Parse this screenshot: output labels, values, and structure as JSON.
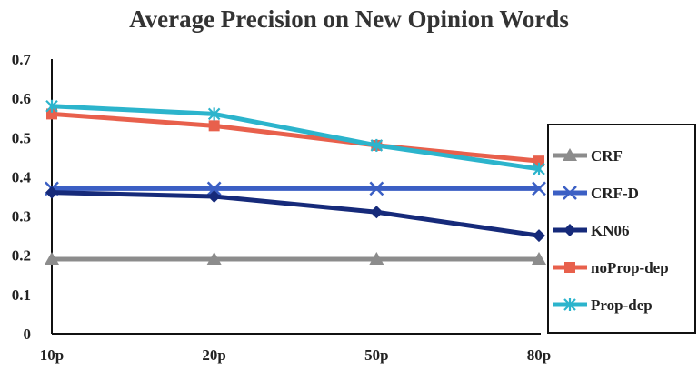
{
  "chart_data": {
    "type": "line",
    "title": "Average Precision on New Opinion Words",
    "xlabel": "",
    "ylabel": "",
    "categories": [
      "10p",
      "20p",
      "50p",
      "80p"
    ],
    "ylim": [
      0,
      0.7
    ],
    "yticks": [
      "0",
      "0.1",
      "0.2",
      "0.3",
      "0.4",
      "0.5",
      "0.6",
      "0.7"
    ],
    "grid": false,
    "legend": "right",
    "series": [
      {
        "name": "CRF",
        "values": [
          0.19,
          0.19,
          0.19,
          0.19
        ],
        "color": "#8c8c8c",
        "marker": "triangle"
      },
      {
        "name": "CRF-D",
        "values": [
          0.37,
          0.37,
          0.37,
          0.37
        ],
        "color": "#3b5fc4",
        "marker": "x"
      },
      {
        "name": "KN06",
        "values": [
          0.36,
          0.35,
          0.31,
          0.25
        ],
        "color": "#162a7a",
        "marker": "diamond"
      },
      {
        "name": "noProp-dep",
        "values": [
          0.56,
          0.53,
          0.48,
          0.44
        ],
        "color": "#e8604c",
        "marker": "square"
      },
      {
        "name": "Prop-dep",
        "values": [
          0.58,
          0.56,
          0.48,
          0.42
        ],
        "color": "#2cb4cc",
        "marker": "star"
      }
    ]
  }
}
